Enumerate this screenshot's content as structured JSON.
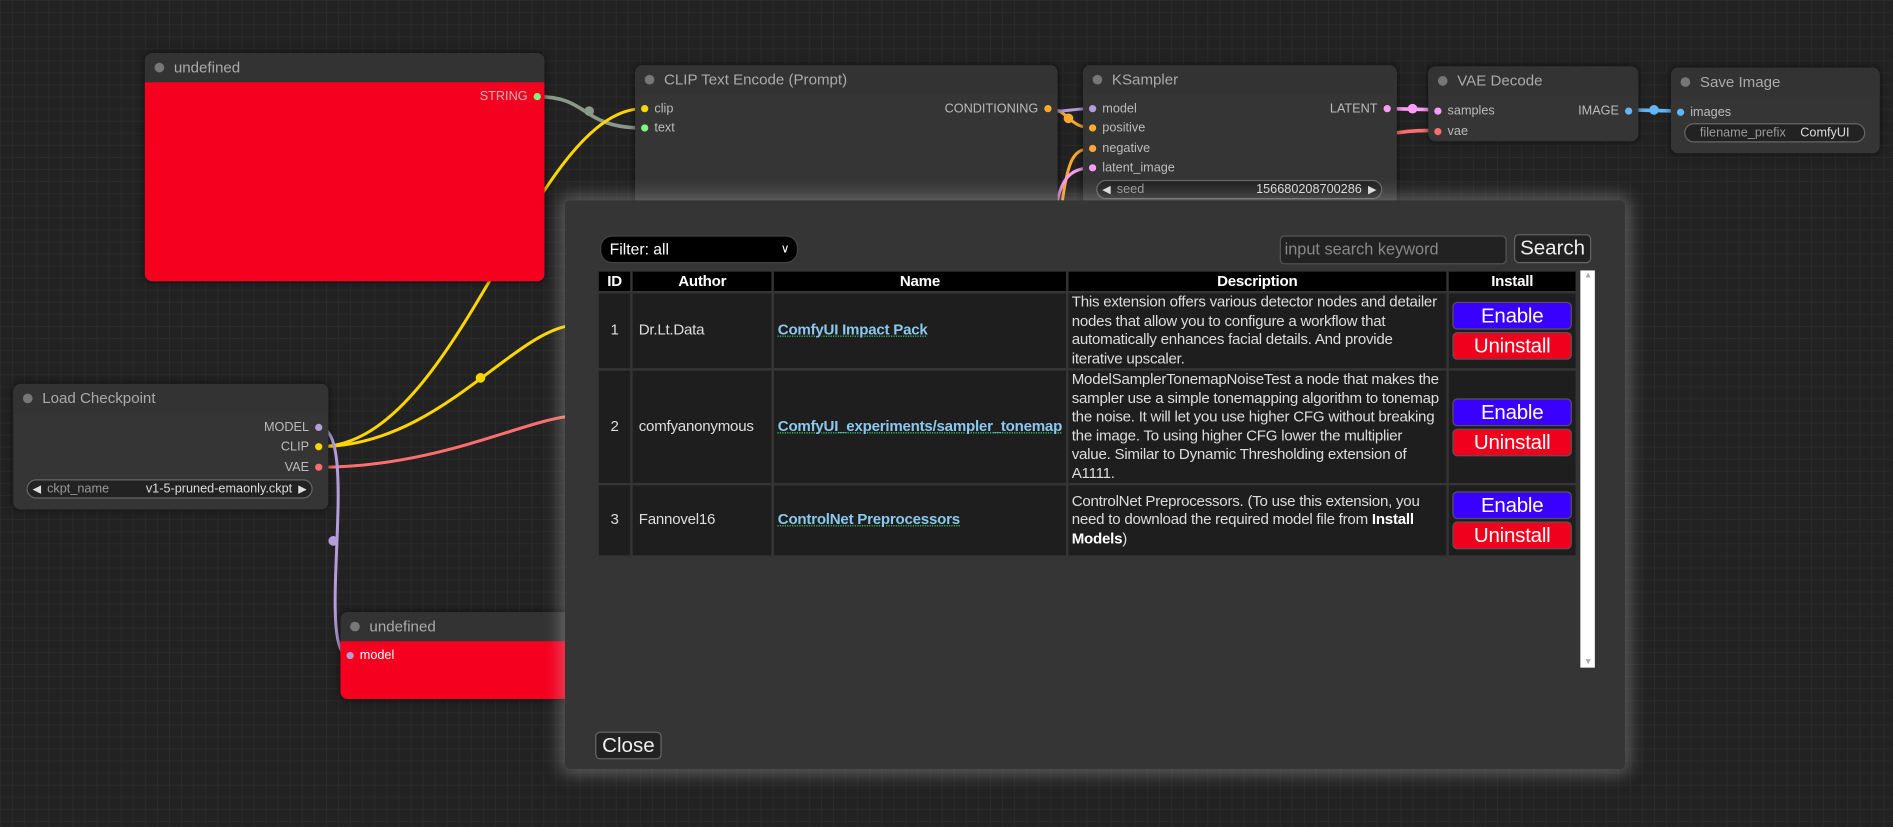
{
  "nodes": {
    "undefined_top": {
      "title": "undefined",
      "outputs": [
        "STRING"
      ]
    },
    "clip_text_encode": {
      "title": "CLIP Text Encode (Prompt)",
      "inputs": [
        "clip",
        "text"
      ],
      "outputs": [
        "CONDITIONING"
      ]
    },
    "ksampler": {
      "title": "KSampler",
      "inputs": [
        "model",
        "positive",
        "negative",
        "latent_image"
      ],
      "outputs": [
        "LATENT"
      ],
      "seed_label": "seed",
      "seed_value": "156680208700286"
    },
    "vae_decode": {
      "title": "VAE Decode",
      "inputs": [
        "samples",
        "vae"
      ],
      "outputs": [
        "IMAGE"
      ]
    },
    "save_image": {
      "title": "Save Image",
      "inputs": [
        "images"
      ],
      "widget_label": "filename_prefix",
      "widget_value": "ComfyUI"
    },
    "load_checkpoint": {
      "title": "Load Checkpoint",
      "outputs": [
        "MODEL",
        "CLIP",
        "VAE"
      ],
      "widget_label": "ckpt_name",
      "widget_value": "v1-5-pruned-emaonly.ckpt"
    },
    "undefined_bottom": {
      "title": "undefined",
      "inputs": [
        "model"
      ]
    }
  },
  "colors": {
    "node_error": "#f5001f",
    "enable": "#3a00ff",
    "uninstall": "#f0001c",
    "clip": "#ffd500",
    "model": "#b39ddb",
    "vae": "#ff6e6e",
    "latent": "#ff9cf9",
    "image": "#64b5f6",
    "string": "#7cfc7c",
    "conditioning": "#ffa931"
  },
  "dialog": {
    "filter": "Filter: all",
    "search_placeholder": "input search keyword",
    "search_button": "Search",
    "close_button": "Close",
    "columns": [
      "ID",
      "Author",
      "Name",
      "Description",
      "Install"
    ],
    "rows": [
      {
        "id": "1",
        "author": "Dr.Lt.Data",
        "name": "ComfyUI Impact Pack",
        "description": "This extension offers various detector nodes and detailer nodes that allow you to configure a workflow that automatically enhances facial details. And provide iterative upscaler.",
        "enable": "Enable",
        "uninstall": "Uninstall"
      },
      {
        "id": "2",
        "author": "comfyanonymous",
        "name": "ComfyUI_experiments/sampler_tonemap",
        "description": "ModelSamplerTonemapNoiseTest a node that makes the sampler use a simple tonemapping algorithm to tonemap the noise. It will let you use higher CFG without breaking the image. To using higher CFG lower the multiplier value. Similar to Dynamic Thresholding extension of A1111.",
        "enable": "Enable",
        "uninstall": "Uninstall"
      },
      {
        "id": "3",
        "author": "Fannovel16",
        "name": "ControlNet Preprocessors",
        "description_pre": "ControlNet Preprocessors. (To use this extension, you need to download the required model file from ",
        "description_bold": "Install Models",
        "description_post": ")",
        "enable": "Enable",
        "uninstall": "Uninstall"
      }
    ]
  }
}
